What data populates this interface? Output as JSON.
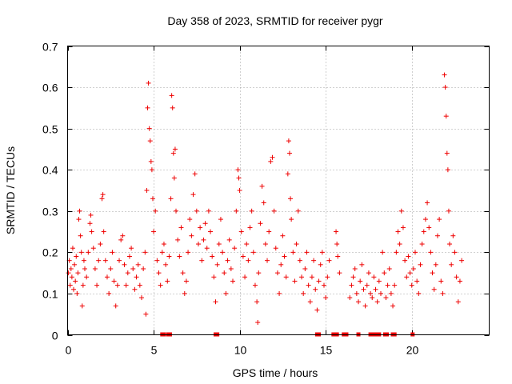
{
  "chart_data": {
    "type": "scatter",
    "title": "Day 358 of 2023, SRMTID for receiver pygr",
    "xlabel": "GPS time / hours",
    "ylabel": "SRMTID / TECUs",
    "xlim": [
      0,
      24.5
    ],
    "ylim": [
      0,
      0.7
    ],
    "x_ticks": [
      0,
      5,
      10,
      15,
      20
    ],
    "y_ticks": [
      0,
      0.1,
      0.2,
      0.3,
      0.4,
      0.5,
      0.6,
      0.7
    ],
    "grid": true,
    "marker": "plus",
    "color": "#ee0000",
    "series": [
      {
        "name": "SRMTID",
        "points": [
          [
            0.05,
            0.15
          ],
          [
            0.1,
            0.18
          ],
          [
            0.15,
            0.12
          ],
          [
            0.2,
            0.16
          ],
          [
            0.25,
            0.14
          ],
          [
            0.3,
            0.21
          ],
          [
            0.35,
            0.11
          ],
          [
            0.4,
            0.17
          ],
          [
            0.45,
            0.13
          ],
          [
            0.5,
            0.19
          ],
          [
            0.55,
            0.1
          ],
          [
            0.6,
            0.15
          ],
          [
            0.65,
            0.28
          ],
          [
            0.7,
            0.3
          ],
          [
            0.75,
            0.24
          ],
          [
            0.8,
            0.2
          ],
          [
            0.85,
            0.07
          ],
          [
            0.9,
            0.12
          ],
          [
            0.95,
            0.18
          ],
          [
            1.0,
            0.16
          ],
          [
            1.1,
            0.14
          ],
          [
            1.2,
            0.2
          ],
          [
            1.3,
            0.27
          ],
          [
            1.35,
            0.29
          ],
          [
            1.4,
            0.25
          ],
          [
            1.5,
            0.21
          ],
          [
            1.6,
            0.16
          ],
          [
            1.7,
            0.12
          ],
          [
            1.8,
            0.18
          ],
          [
            1.9,
            0.22
          ],
          [
            2.0,
            0.33
          ],
          [
            2.05,
            0.34
          ],
          [
            2.1,
            0.25
          ],
          [
            2.2,
            0.18
          ],
          [
            2.3,
            0.14
          ],
          [
            2.4,
            0.1
          ],
          [
            2.5,
            0.16
          ],
          [
            2.6,
            0.2
          ],
          [
            2.7,
            0.13
          ],
          [
            2.8,
            0.07
          ],
          [
            2.9,
            0.12
          ],
          [
            3.0,
            0.18
          ],
          [
            3.1,
            0.23
          ],
          [
            3.2,
            0.24
          ],
          [
            3.3,
            0.17
          ],
          [
            3.4,
            0.12
          ],
          [
            3.5,
            0.15
          ],
          [
            3.6,
            0.19
          ],
          [
            3.7,
            0.21
          ],
          [
            3.8,
            0.16
          ],
          [
            3.9,
            0.11
          ],
          [
            4.0,
            0.14
          ],
          [
            4.1,
            0.17
          ],
          [
            4.2,
            0.12
          ],
          [
            4.3,
            0.09
          ],
          [
            4.4,
            0.16
          ],
          [
            4.5,
            0.2
          ],
          [
            4.55,
            0.05
          ],
          [
            4.6,
            0.35
          ],
          [
            4.65,
            0.55
          ],
          [
            4.7,
            0.61
          ],
          [
            4.75,
            0.5
          ],
          [
            4.8,
            0.47
          ],
          [
            4.85,
            0.42
          ],
          [
            4.9,
            0.4
          ],
          [
            4.95,
            0.33
          ],
          [
            5.0,
            0.25
          ],
          [
            5.1,
            0.3
          ],
          [
            5.2,
            0.18
          ],
          [
            5.3,
            0.15
          ],
          [
            5.4,
            0.12
          ],
          [
            5.5,
            0.2
          ],
          [
            5.6,
            0.22
          ],
          [
            5.7,
            0.17
          ],
          [
            5.8,
            0.13
          ],
          [
            5.9,
            0.19
          ],
          [
            6.0,
            0.33
          ],
          [
            6.05,
            0.58
          ],
          [
            6.1,
            0.55
          ],
          [
            6.15,
            0.44
          ],
          [
            6.2,
            0.38
          ],
          [
            6.25,
            0.45
          ],
          [
            6.3,
            0.3
          ],
          [
            6.4,
            0.23
          ],
          [
            6.5,
            0.19
          ],
          [
            6.6,
            0.26
          ],
          [
            6.7,
            0.15
          ],
          [
            6.8,
            0.1
          ],
          [
            6.9,
            0.13
          ],
          [
            7.0,
            0.2
          ],
          [
            7.1,
            0.28
          ],
          [
            7.2,
            0.24
          ],
          [
            7.3,
            0.34
          ],
          [
            7.4,
            0.39
          ],
          [
            7.5,
            0.3
          ],
          [
            7.6,
            0.22
          ],
          [
            7.7,
            0.26
          ],
          [
            7.8,
            0.18
          ],
          [
            7.9,
            0.23
          ],
          [
            8.0,
            0.27
          ],
          [
            8.1,
            0.21
          ],
          [
            8.2,
            0.3
          ],
          [
            8.3,
            0.25
          ],
          [
            8.4,
            0.19
          ],
          [
            8.5,
            0.14
          ],
          [
            8.6,
            0.08
          ],
          [
            8.7,
            0.17
          ],
          [
            8.8,
            0.22
          ],
          [
            8.9,
            0.28
          ],
          [
            9.0,
            0.2
          ],
          [
            9.1,
            0.15
          ],
          [
            9.2,
            0.1
          ],
          [
            9.3,
            0.18
          ],
          [
            9.4,
            0.23
          ],
          [
            9.5,
            0.16
          ],
          [
            9.6,
            0.13
          ],
          [
            9.7,
            0.21
          ],
          [
            9.8,
            0.3
          ],
          [
            9.9,
            0.4
          ],
          [
            9.95,
            0.38
          ],
          [
            10.0,
            0.35
          ],
          [
            10.1,
            0.25
          ],
          [
            10.2,
            0.19
          ],
          [
            10.3,
            0.14
          ],
          [
            10.4,
            0.22
          ],
          [
            10.5,
            0.18
          ],
          [
            10.6,
            0.26
          ],
          [
            10.7,
            0.3
          ],
          [
            10.8,
            0.2
          ],
          [
            10.9,
            0.12
          ],
          [
            11.0,
            0.08
          ],
          [
            11.05,
            0.03
          ],
          [
            11.1,
            0.15
          ],
          [
            11.2,
            0.27
          ],
          [
            11.3,
            0.36
          ],
          [
            11.4,
            0.32
          ],
          [
            11.5,
            0.22
          ],
          [
            11.6,
            0.18
          ],
          [
            11.7,
            0.25
          ],
          [
            11.8,
            0.42
          ],
          [
            11.9,
            0.43
          ],
          [
            12.0,
            0.3
          ],
          [
            12.1,
            0.21
          ],
          [
            12.2,
            0.15
          ],
          [
            12.3,
            0.1
          ],
          [
            12.4,
            0.17
          ],
          [
            12.5,
            0.24
          ],
          [
            12.6,
            0.19
          ],
          [
            12.7,
            0.14
          ],
          [
            12.8,
            0.39
          ],
          [
            12.85,
            0.47
          ],
          [
            12.9,
            0.44
          ],
          [
            12.95,
            0.33
          ],
          [
            13.0,
            0.28
          ],
          [
            13.1,
            0.2
          ],
          [
            13.2,
            0.13
          ],
          [
            13.3,
            0.22
          ],
          [
            13.4,
            0.3
          ],
          [
            13.5,
            0.18
          ],
          [
            13.6,
            0.14
          ],
          [
            13.7,
            0.1
          ],
          [
            13.8,
            0.16
          ],
          [
            13.9,
            0.2
          ],
          [
            14.0,
            0.12
          ],
          [
            14.1,
            0.08
          ],
          [
            14.2,
            0.14
          ],
          [
            14.3,
            0.18
          ],
          [
            14.4,
            0.11
          ],
          [
            14.5,
            0.06
          ],
          [
            14.6,
            0.13
          ],
          [
            14.7,
            0.17
          ],
          [
            14.8,
            0.2
          ],
          [
            14.9,
            0.12
          ],
          [
            15.0,
            0.09
          ],
          [
            15.1,
            0.14
          ],
          [
            15.2,
            0.18
          ],
          [
            15.6,
            0.25
          ],
          [
            15.65,
            0.22
          ],
          [
            15.7,
            0.19
          ],
          [
            15.8,
            0.15
          ],
          [
            16.4,
            0.09
          ],
          [
            16.5,
            0.12
          ],
          [
            16.6,
            0.14
          ],
          [
            16.7,
            0.16
          ],
          [
            16.8,
            0.1
          ],
          [
            16.9,
            0.08
          ],
          [
            17.0,
            0.13
          ],
          [
            17.1,
            0.17
          ],
          [
            17.2,
            0.11
          ],
          [
            17.3,
            0.07
          ],
          [
            17.4,
            0.12
          ],
          [
            17.5,
            0.15
          ],
          [
            17.6,
            0.1
          ],
          [
            17.7,
            0.09
          ],
          [
            17.8,
            0.14
          ],
          [
            17.9,
            0.11
          ],
          [
            18.0,
            0.08
          ],
          [
            18.1,
            0.13
          ],
          [
            18.2,
            0.1
          ],
          [
            18.3,
            0.2
          ],
          [
            18.4,
            0.15
          ],
          [
            18.5,
            0.09
          ],
          [
            18.6,
            0.12
          ],
          [
            18.7,
            0.16
          ],
          [
            18.8,
            0.1
          ],
          [
            18.9,
            0.07
          ],
          [
            19.0,
            0.12
          ],
          [
            19.1,
            0.2
          ],
          [
            19.2,
            0.25
          ],
          [
            19.3,
            0.22
          ],
          [
            19.4,
            0.3
          ],
          [
            19.5,
            0.26
          ],
          [
            19.6,
            0.18
          ],
          [
            19.7,
            0.14
          ],
          [
            19.8,
            0.19
          ],
          [
            19.9,
            0.15
          ],
          [
            20.0,
            0.12
          ],
          [
            20.1,
            0.16
          ],
          [
            20.2,
            0.2
          ],
          [
            20.3,
            0.13
          ],
          [
            20.4,
            0.1
          ],
          [
            20.5,
            0.17
          ],
          [
            20.6,
            0.22
          ],
          [
            20.7,
            0.25
          ],
          [
            20.8,
            0.28
          ],
          [
            20.9,
            0.32
          ],
          [
            21.0,
            0.26
          ],
          [
            21.1,
            0.2
          ],
          [
            21.2,
            0.15
          ],
          [
            21.3,
            0.11
          ],
          [
            21.4,
            0.17
          ],
          [
            21.5,
            0.24
          ],
          [
            21.6,
            0.28
          ],
          [
            21.7,
            0.13
          ],
          [
            21.8,
            0.1
          ],
          [
            21.9,
            0.63
          ],
          [
            21.95,
            0.6
          ],
          [
            22.0,
            0.53
          ],
          [
            22.05,
            0.44
          ],
          [
            22.1,
            0.4
          ],
          [
            22.15,
            0.3
          ],
          [
            22.2,
            0.22
          ],
          [
            22.3,
            0.17
          ],
          [
            22.4,
            0.24
          ],
          [
            22.5,
            0.2
          ],
          [
            22.6,
            0.14
          ],
          [
            22.7,
            0.08
          ],
          [
            22.8,
            0.13
          ],
          [
            22.9,
            0.18
          ]
        ]
      }
    ],
    "zero_points_x": [
      5.5,
      5.6,
      5.85,
      5.95,
      8.6,
      8.7,
      14.5,
      14.6,
      15.45,
      15.55,
      15.65,
      16.05,
      16.2,
      16.9,
      17.6,
      17.7,
      17.8,
      17.9,
      18.0,
      18.1,
      18.45,
      18.55,
      18.9,
      19.0,
      20.05
    ]
  }
}
